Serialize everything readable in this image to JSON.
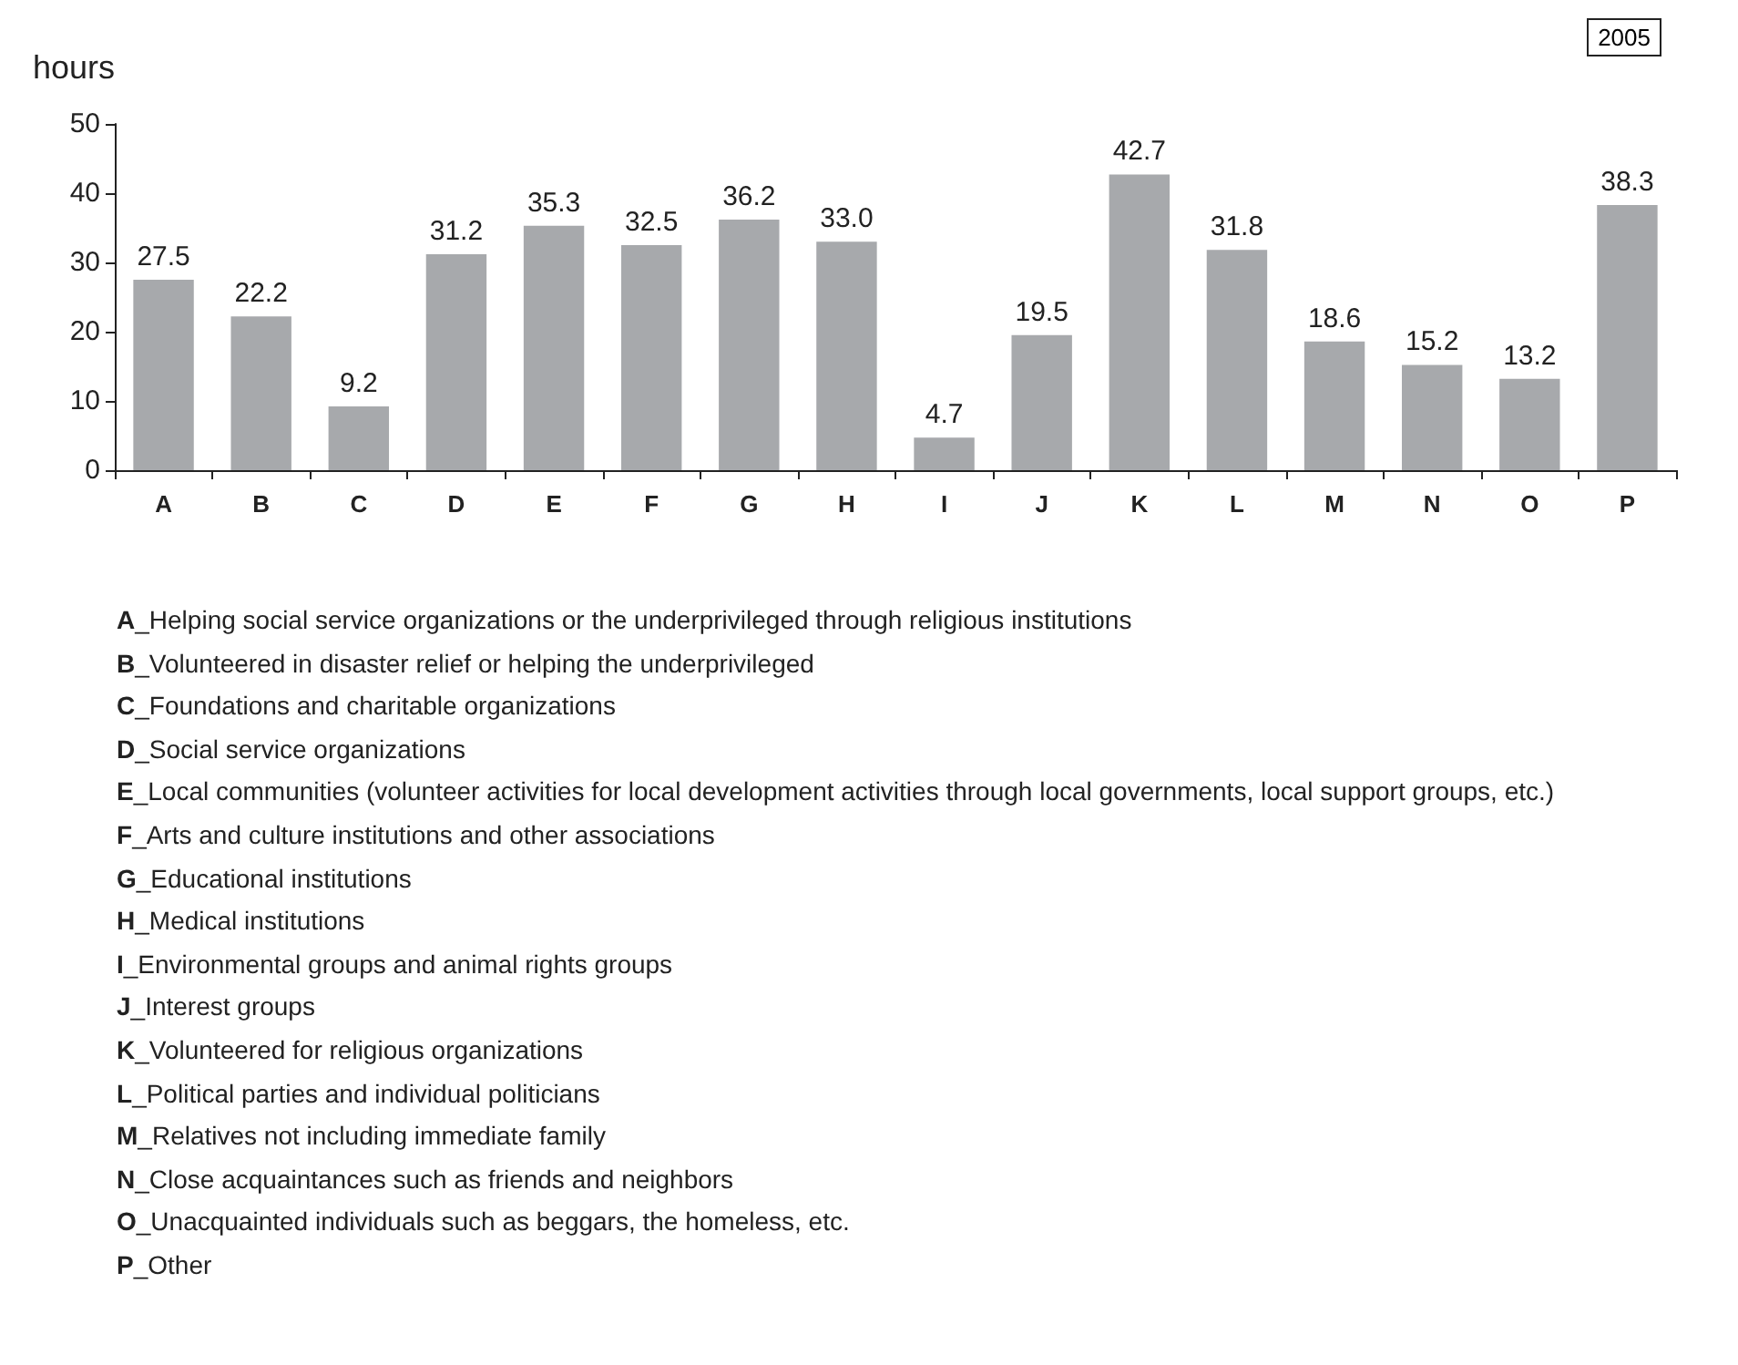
{
  "chart_data": {
    "type": "bar",
    "ylabel": "hours",
    "categories": [
      "A",
      "B",
      "C",
      "D",
      "E",
      "F",
      "G",
      "H",
      "I",
      "J",
      "K",
      "L",
      "M",
      "N",
      "O",
      "P"
    ],
    "values": [
      27.5,
      22.2,
      9.2,
      31.2,
      35.3,
      32.5,
      36.2,
      33.0,
      4.7,
      19.5,
      42.7,
      31.8,
      18.6,
      15.2,
      13.2,
      38.3
    ],
    "value_labels": [
      "27.5",
      "22.2",
      "9.2",
      "31.2",
      "35.3",
      "32.5",
      "36.2",
      "33.0",
      "4.7",
      "19.5",
      "42.7",
      "31.8",
      "18.6",
      "15.2",
      "13.2",
      "38.3"
    ],
    "color": "#a7a9ac",
    "ylim": [
      0,
      50
    ],
    "yticks": [
      0,
      10,
      20,
      30,
      40,
      50
    ],
    "annotations": [
      "2005",
      "A_Helping social service organizations or the underprivileged through religious institutions",
      "B_Volunteered in disaster relief or helping the underprivileged",
      "C_Foundations and charitable organizations",
      "D_Social service organizations",
      "E_Local communities (volunteer activities for local development activities through local governments, local support groups, etc.)",
      "F_Arts and culture institutions and other associations",
      "G_Educational institutions",
      "H_Medical institutions",
      "I_Environmental groups and animal rights groups",
      "J_Interest groups",
      "K_Volunteered for religious organizations",
      "L_Political parties and individual politicians",
      "M_Relatives not including immediate family",
      "N_Close acquaintances such as friends and neighbors",
      "O_Unacquainted individuals such as beggars, the homeless, etc.",
      "P_Other"
    ]
  }
}
